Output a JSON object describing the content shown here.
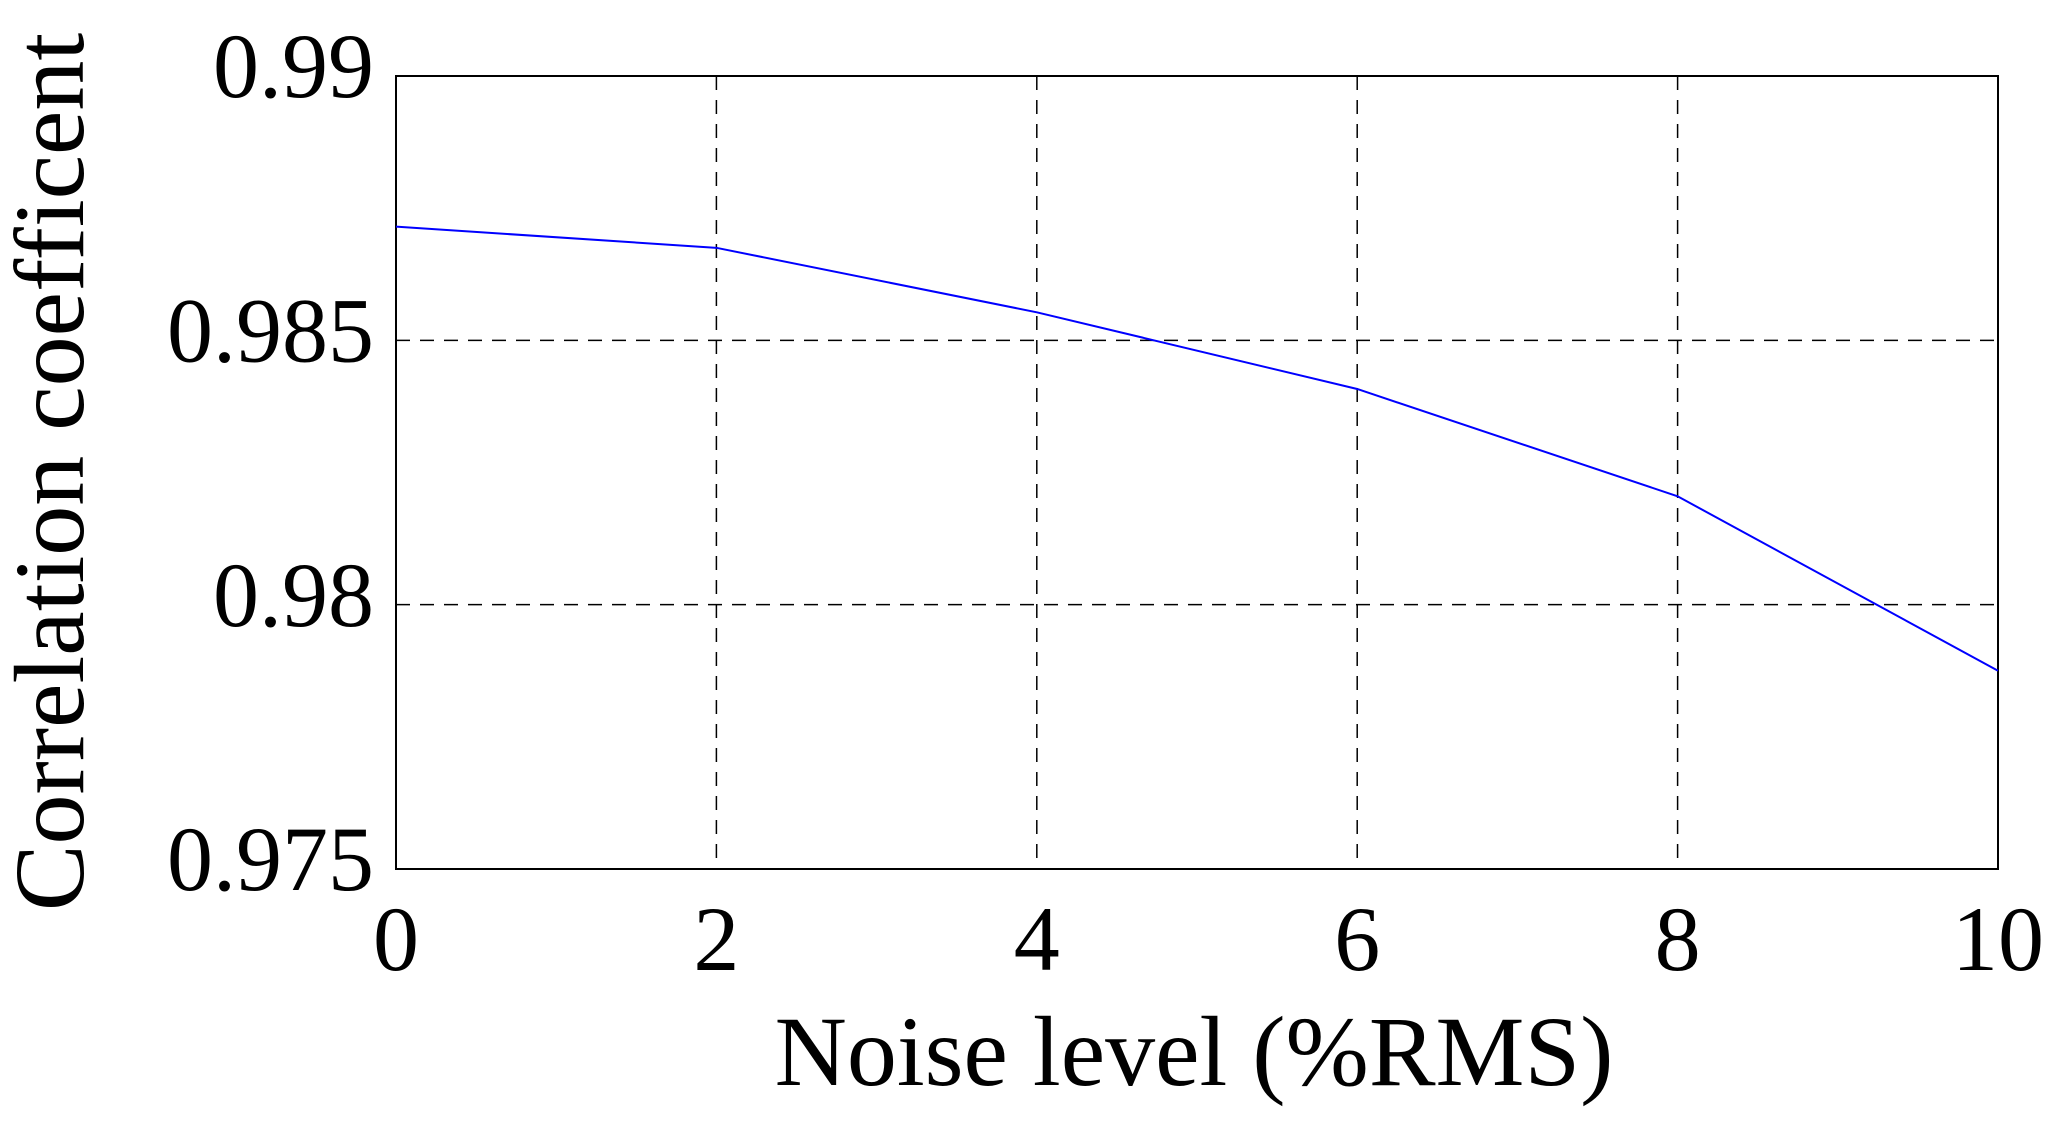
{
  "chart_data": {
    "type": "line",
    "x_label": "Noise level (%RMS)",
    "y_label": "Correlation coefficent",
    "x": [
      0,
      2,
      4,
      6,
      8,
      10
    ],
    "series": [
      {
        "name": "Correlation coefficent",
        "color": "#0000ff",
        "values": [
          0.98715,
          0.98675,
          0.98553,
          0.98408,
          0.98205,
          0.97875
        ]
      }
    ],
    "xlim": [
      0,
      10
    ],
    "xticks": [
      0,
      2,
      4,
      6,
      8,
      10
    ],
    "ylim": [
      0.975,
      0.99
    ],
    "yticks": [
      0.975,
      0.98,
      0.985,
      0.99
    ],
    "grid": true
  }
}
